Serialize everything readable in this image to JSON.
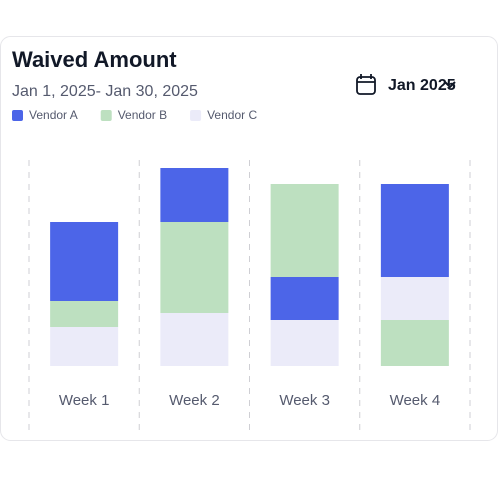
{
  "chart_data": {
    "type": "bar",
    "stacked": true,
    "title": "Waived Amount",
    "subtitle": "Jan 1, 2025- Jan 30, 2025",
    "categories": [
      "Week 1",
      "Week 2",
      "Week 3",
      "Week 4"
    ],
    "series": [
      {
        "name": "Vendor A",
        "color": "#4c65e8",
        "values": [
          79,
          54,
          43,
          93
        ]
      },
      {
        "name": "Vendor B",
        "color": "#bde0c0",
        "values": [
          26,
          91,
          93,
          46
        ]
      },
      {
        "name": "Vendor C",
        "color": "#ebebf9",
        "values": [
          39,
          53,
          46,
          43
        ]
      }
    ],
    "stack_order": [
      [
        2,
        1,
        0
      ],
      [
        2,
        1,
        0
      ],
      [
        2,
        0,
        1
      ],
      [
        1,
        2,
        0
      ]
    ],
    "ylim": [
      0,
      200
    ]
  },
  "controls": {
    "period": "Jan 2025"
  }
}
